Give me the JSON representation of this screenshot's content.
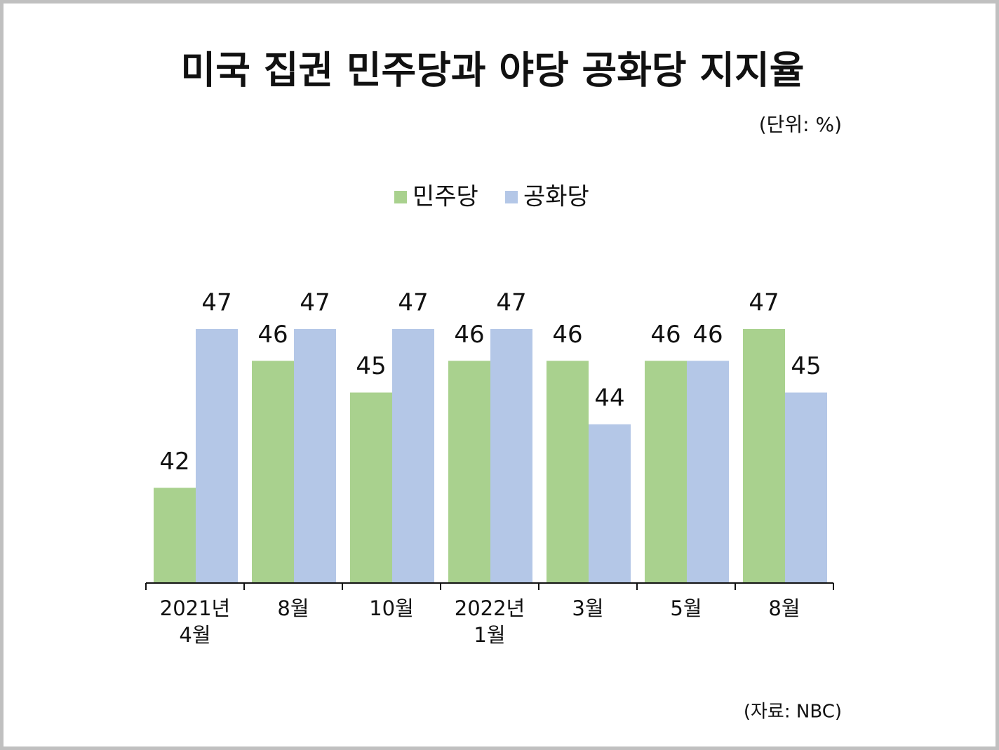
{
  "chart_data": {
    "type": "bar",
    "title": "미국 집권 민주당과 야당 공화당 지지율",
    "unit_note": "(단위: %)",
    "source": "(자료: NBC)",
    "categories": [
      "2021년\n4월",
      "8월",
      "10월",
      "2022년\n1월",
      "3월",
      "5월",
      "8월"
    ],
    "series": [
      {
        "name": "민주당",
        "color": "#a9d18e",
        "values": [
          42,
          46,
          45,
          46,
          46,
          46,
          47
        ]
      },
      {
        "name": "공화당",
        "color": "#b4c7e7",
        "values": [
          47,
          47,
          47,
          47,
          44,
          46,
          45
        ]
      }
    ],
    "ylim": [
      39,
      47
    ],
    "legend": "top"
  }
}
